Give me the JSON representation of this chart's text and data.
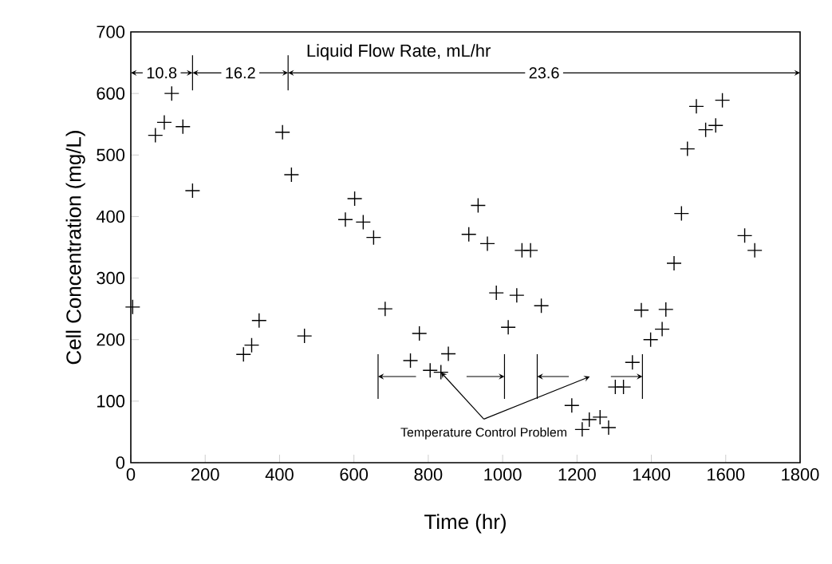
{
  "chart_data": {
    "type": "scatter",
    "xlabel": "Time (hr)",
    "ylabel": "Cell Concentration (mg/L)",
    "x": [
      5,
      66,
      90,
      110,
      140,
      166,
      303,
      325,
      345,
      408,
      432,
      467,
      577,
      602,
      625,
      653,
      684,
      752,
      776,
      805,
      834,
      854,
      909,
      934,
      959,
      983,
      1015,
      1038,
      1052,
      1075,
      1104,
      1186,
      1214,
      1233,
      1262,
      1285,
      1303,
      1325,
      1349,
      1373,
      1398,
      1429,
      1439,
      1461,
      1481,
      1497,
      1521,
      1546,
      1573,
      1591,
      1651,
      1678
    ],
    "values": [
      253,
      532,
      553,
      600,
      546,
      442,
      176,
      191,
      231,
      537,
      468,
      206,
      395,
      429,
      391,
      366,
      250,
      166,
      210,
      150,
      147,
      177,
      371,
      418,
      356,
      276,
      220,
      272,
      345,
      345,
      255,
      93,
      54,
      70,
      74,
      57,
      123,
      123,
      163,
      248,
      200,
      217,
      249,
      324,
      405,
      510,
      579,
      541,
      548,
      589,
      369,
      345
    ],
    "color": "#000000",
    "marker": "cross",
    "grid": false,
    "xlim": [
      0,
      1800
    ],
    "ylim": [
      0,
      700
    ],
    "xticks": [
      0,
      200,
      400,
      600,
      800,
      1000,
      1200,
      1400,
      1600,
      1800
    ],
    "yticks": [
      0,
      100,
      200,
      300,
      400,
      500,
      600,
      700
    ],
    "ref_lines": [
      {
        "axis": "x",
        "value": 166
      },
      {
        "axis": "x",
        "value": 423
      },
      {
        "axis": "x",
        "value": 665
      },
      {
        "axis": "x",
        "value": 1005
      },
      {
        "axis": "x",
        "value": 1093
      },
      {
        "axis": "x",
        "value": 1376
      }
    ],
    "annotations": [
      "Liquid Flow Rate, mL/hr",
      "10.8",
      "16.2",
      "23.6",
      {
        "text": "Temperature Control Problem",
        "x": 834,
        "y": 147
      }
    ]
  }
}
